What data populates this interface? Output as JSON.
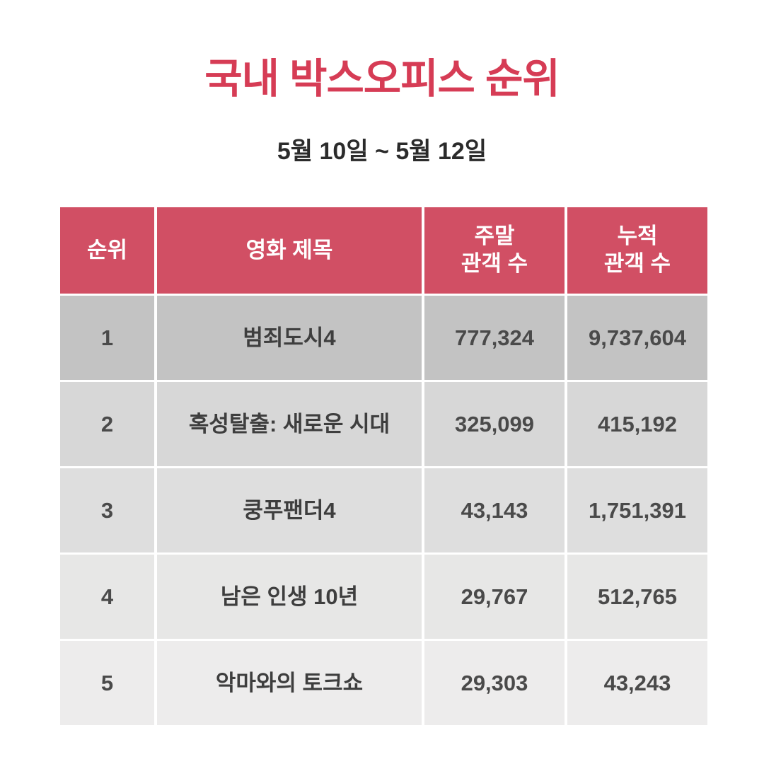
{
  "page": {
    "title": "국내 박스오피스 순위",
    "subtitle": "5월 10일 ~ 5월 12일"
  },
  "colors": {
    "title_accent": "#d63c55",
    "header_bg": "#d14f64",
    "header_text": "#ffffff",
    "row_backgrounds": [
      "#c3c3c3",
      "#d7d7d7",
      "#dedede",
      "#e7e7e6",
      "#edecec"
    ],
    "body_text": "#4a4a4a"
  },
  "table": {
    "headers": [
      "순위",
      "영화 제목",
      "주말\n관객 수",
      "누적\n관객 수"
    ],
    "rows": [
      {
        "rank": "1",
        "title": "범죄도시4",
        "weekend": "777,324",
        "total": "9,737,604"
      },
      {
        "rank": "2",
        "title": "혹성탈출: 새로운 시대",
        "weekend": "325,099",
        "total": "415,192"
      },
      {
        "rank": "3",
        "title": "쿵푸팬더4",
        "weekend": "43,143",
        "total": "1,751,391"
      },
      {
        "rank": "4",
        "title": "남은 인생 10년",
        "weekend": "29,767",
        "total": "512,765"
      },
      {
        "rank": "5",
        "title": "악마와의 토크쇼",
        "weekend": "29,303",
        "total": "43,243"
      }
    ]
  },
  "chart_data": {
    "type": "table",
    "title": "국내 박스오피스 순위",
    "subtitle": "5월 10일 ~ 5월 12일",
    "columns": [
      "순위",
      "영화 제목",
      "주말 관객 수",
      "누적 관객 수"
    ],
    "rows": [
      [
        1,
        "범죄도시4",
        777324,
        9737604
      ],
      [
        2,
        "혹성탈출: 새로운 시대",
        325099,
        415192
      ],
      [
        3,
        "쿵푸팬더4",
        43143,
        1751391
      ],
      [
        4,
        "남은 인생 10년",
        29767,
        512765
      ],
      [
        5,
        "악마와의 토크쇼",
        29303,
        43243
      ]
    ]
  }
}
